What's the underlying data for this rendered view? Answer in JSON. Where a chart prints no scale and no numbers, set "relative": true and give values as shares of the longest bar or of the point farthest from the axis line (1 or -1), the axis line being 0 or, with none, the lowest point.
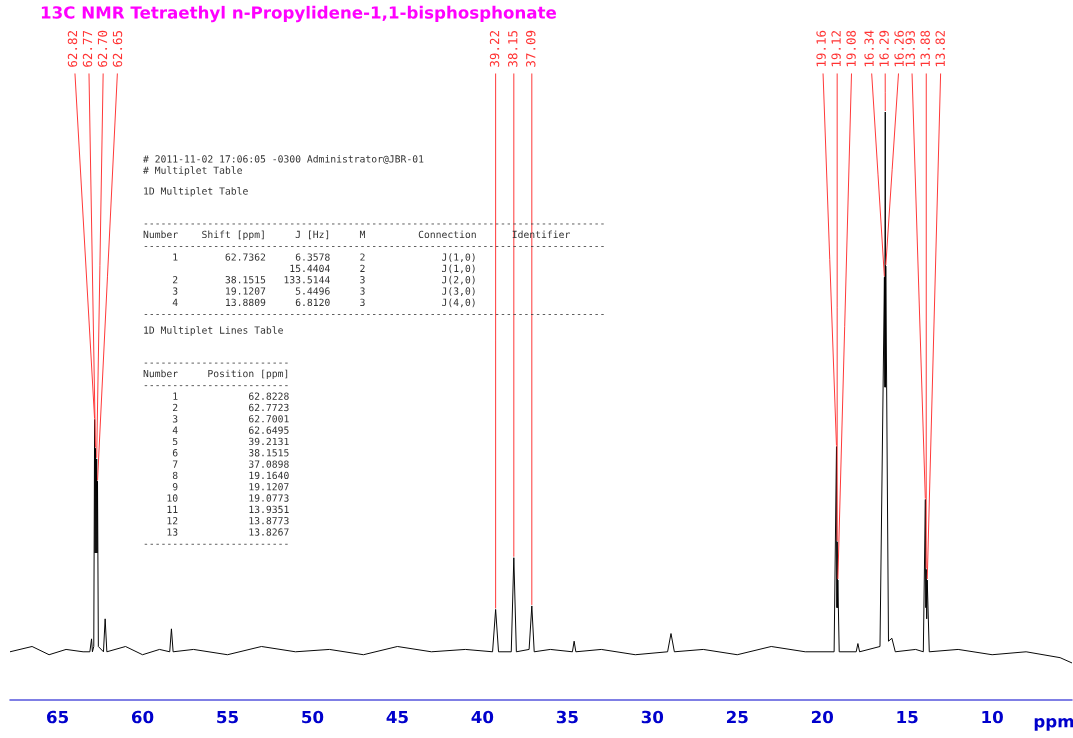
{
  "chart_data": {
    "type": "line",
    "title": "13C NMR Tetraethyl n-Propylidene-1,1-bisphosphonate",
    "xlabel": "ppm",
    "relative": true,
    "xlim": [
      67.8,
      5.3
    ],
    "xticks": [
      65,
      60,
      55,
      50,
      45,
      40,
      35,
      30,
      25,
      20,
      15,
      10
    ],
    "tick_labels": "x",
    "grid": false,
    "legend": false,
    "marker": "none",
    "line_style": "solid",
    "x": [
      67.8,
      66.5,
      65.5,
      64.5,
      63.5,
      63.1,
      63.0,
      62.95,
      62.87,
      62.82,
      62.795,
      62.77,
      62.735,
      62.7,
      62.675,
      62.65,
      62.6,
      62.3,
      62.2,
      62.1,
      61,
      60,
      59,
      58.4,
      58.3,
      58.2,
      57,
      55,
      53,
      51,
      49,
      47,
      45,
      43,
      41,
      39.4,
      39.22,
      39.05,
      38.3,
      38.15,
      38.0,
      37.25,
      37.09,
      36.95,
      36,
      34.7,
      34.6,
      34.5,
      33,
      31,
      29.1,
      28.9,
      28.7,
      27,
      25,
      23,
      21,
      19.3,
      19.16,
      19.14,
      19.12,
      19.1,
      19.08,
      19.0,
      18.0,
      17.9,
      17.8,
      16.6,
      16.34,
      16.315,
      16.29,
      16.275,
      16.26,
      16.1,
      15.9,
      15.7,
      14.5,
      14.05,
      13.93,
      13.905,
      13.88,
      13.85,
      13.82,
      13.7,
      12,
      10,
      8,
      6,
      5.3
    ],
    "series": [
      {
        "color": "#000000",
        "values": [
          0.082,
          0.091,
          0.077,
          0.086,
          0.082,
          0.082,
          0.104,
          0.082,
          0.091,
          0.477,
          0.25,
          0.428,
          0.25,
          0.41,
          0.25,
          0.372,
          0.091,
          0.082,
          0.138,
          0.082,
          0.091,
          0.077,
          0.086,
          0.082,
          0.121,
          0.082,
          0.086,
          0.077,
          0.091,
          0.082,
          0.086,
          0.077,
          0.091,
          0.082,
          0.086,
          0.082,
          0.154,
          0.082,
          0.082,
          0.242,
          0.082,
          0.086,
          0.16,
          0.082,
          0.086,
          0.082,
          0.1,
          0.082,
          0.086,
          0.077,
          0.082,
          0.113,
          0.082,
          0.086,
          0.077,
          0.091,
          0.082,
          0.082,
          0.431,
          0.157,
          0.269,
          0.157,
          0.204,
          0.082,
          0.082,
          0.096,
          0.082,
          0.091,
          0.719,
          0.532,
          1.0,
          0.532,
          0.738,
          0.1,
          0.105,
          0.082,
          0.086,
          0.082,
          0.341,
          0.157,
          0.222,
          0.138,
          0.204,
          0.082,
          0.086,
          0.077,
          0.082,
          0.072,
          0.063
        ]
      }
    ],
    "annotations": [
      {
        "text": "62.82",
        "x": 62.82,
        "y": 0.477
      },
      {
        "text": "62.77",
        "x": 62.77,
        "y": 0.428
      },
      {
        "text": "62.70",
        "x": 62.7,
        "y": 0.41
      },
      {
        "text": "62.65",
        "x": 62.65,
        "y": 0.372
      },
      {
        "text": "39.22",
        "x": 39.22,
        "y": 0.154
      },
      {
        "text": "38.15",
        "x": 38.15,
        "y": 0.242
      },
      {
        "text": "37.09",
        "x": 37.09,
        "y": 0.16
      },
      {
        "text": "19.16",
        "x": 19.16,
        "y": 0.431
      },
      {
        "text": "19.12",
        "x": 19.12,
        "y": 0.269
      },
      {
        "text": "19.08",
        "x": 19.08,
        "y": 0.204
      },
      {
        "text": "16.34",
        "x": 16.34,
        "y": 0.719
      },
      {
        "text": "16.29",
        "x": 16.29,
        "y": 1.0
      },
      {
        "text": "16.26",
        "x": 16.26,
        "y": 0.738
      },
      {
        "text": "13.93",
        "x": 13.93,
        "y": 0.341
      },
      {
        "text": "13.88",
        "x": 13.88,
        "y": 0.222
      },
      {
        "text": "13.82",
        "x": 13.82,
        "y": 0.204
      },
      "# 2011-11-02 17:06:05 -0300 Administrator@JBR-01\n# Multiplet Table",
      "1D Multiplet Table",
      "-------------------------------------------------------------------------------\nNumber    Shift [ppm]     J [Hz]     M         Connection      Identifier\n-------------------------------------------------------------------------------\n     1        62.7362     6.3578     2             J(1,0)\n                         15.4404     2             J(1,0)\n     2        38.1515   133.5144     3             J(2,0)\n     3        19.1207     5.4496     3             J(3,0)\n     4        13.8809     6.8120     3             J(4,0)\n-------------------------------------------------------------------------------",
      "1D Multiplet Lines Table",
      "-------------------------\nNumber     Position [ppm]\n-------------------------\n     1            62.8228\n     2            62.7723\n     3            62.7001\n     4            62.6495\n     5            39.2131\n     6            38.1515\n     7            37.0898\n     8            19.1640\n     9            19.1207\n    10            19.0773\n    11            13.9351\n    12            13.8773\n    13            13.8267\n-------------------------"
    ]
  }
}
